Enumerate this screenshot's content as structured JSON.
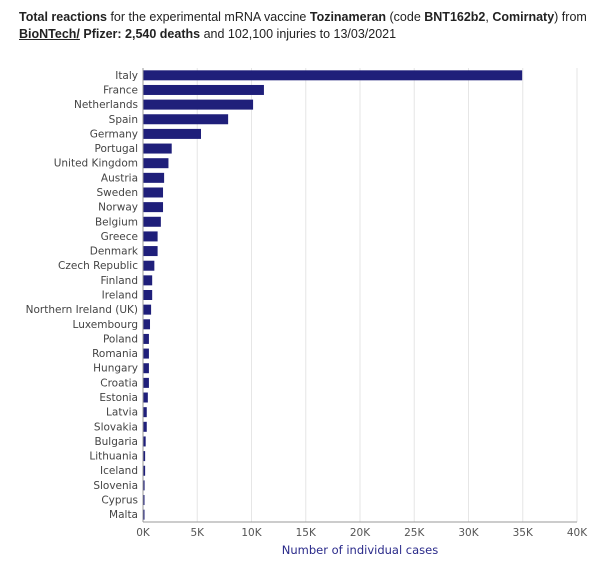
{
  "header": {
    "line1_a": "Total reactions",
    "line1_b": " for the experimental mRNA vaccine ",
    "line1_c": "Tozinameran",
    "line1_d": " (code ",
    "line1_e": "BNT162b2",
    "line1_f": ", ",
    "line1_g": "Comirnaty",
    "line1_h": ") from",
    "line2_link": "BioNTech/",
    "line2_a": " Pfizer: ",
    "line2_b": "2,540 deaths",
    "line2_c": " and 102,100 injuries to 13/03/2021"
  },
  "colors": {
    "bar": "#1f1f7a",
    "grid": "#e6e6e6",
    "axis": "#9a9a9a"
  },
  "chart_data": {
    "type": "bar",
    "orientation": "horizontal",
    "categories": [
      "Italy",
      "France",
      "Netherlands",
      "Spain",
      "Germany",
      "Portugal",
      "United Kingdom",
      "Austria",
      "Sweden",
      "Norway",
      "Belgium",
      "Greece",
      "Denmark",
      "Czech Republic",
      "Finland",
      "Ireland",
      "Northern Ireland (UK)",
      "Luxembourg",
      "Poland",
      "Romania",
      "Hungary",
      "Croatia",
      "Estonia",
      "Latvia",
      "Slovakia",
      "Bulgaria",
      "Lithuania",
      "Iceland",
      "Slovenia",
      "Cyprus",
      "Malta"
    ],
    "values": [
      34900,
      11100,
      10100,
      7800,
      5300,
      2600,
      2300,
      1900,
      1800,
      1800,
      1600,
      1300,
      1300,
      1000,
      800,
      800,
      700,
      600,
      500,
      500,
      500,
      500,
      400,
      300,
      300,
      200,
      150,
      150,
      100,
      50,
      30
    ],
    "xlabel": "Number of individual cases",
    "xlim": [
      0,
      40000
    ],
    "xticks": [
      0,
      5000,
      10000,
      15000,
      20000,
      25000,
      30000,
      35000,
      40000
    ],
    "xtick_labels": [
      "0K",
      "5K",
      "10K",
      "15K",
      "20K",
      "25K",
      "30K",
      "35K",
      "40K"
    ],
    "grid": true
  }
}
